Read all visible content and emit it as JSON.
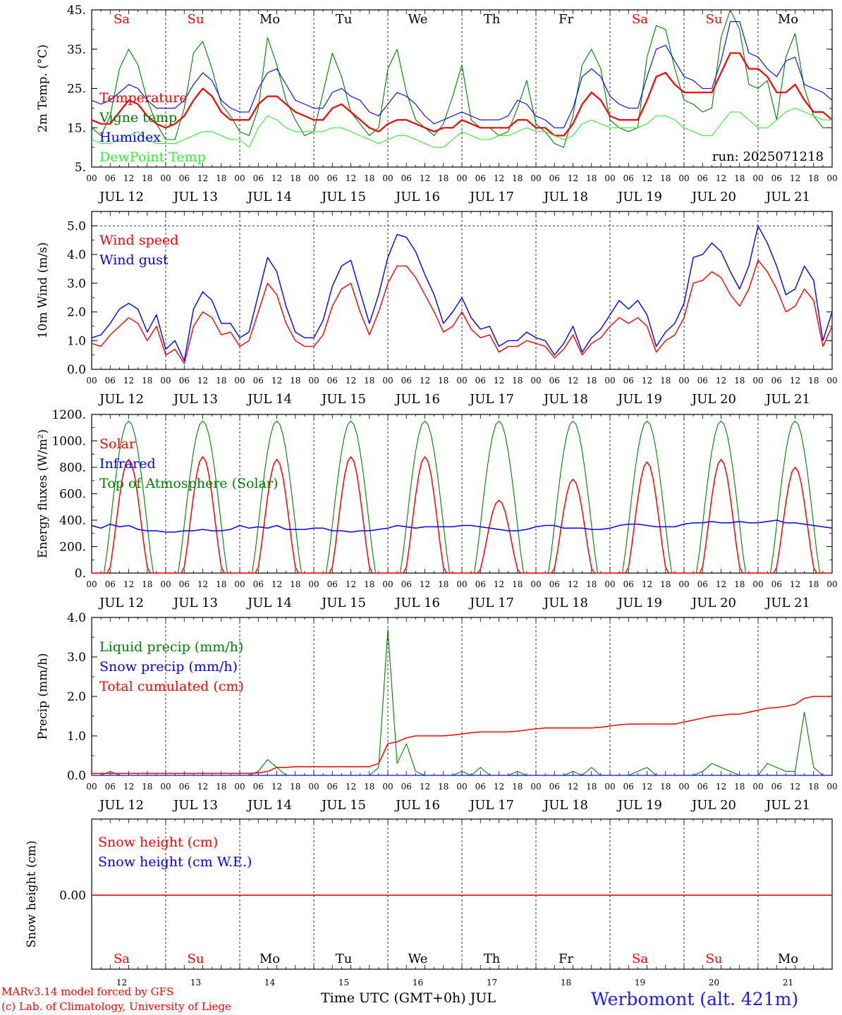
{
  "footer": {
    "credit_line1": "MARv3.14 model forced by GFS",
    "credit_line2": "(c) Lab. of Climatology, University of Liege",
    "x_title": "Time UTC (GMT+0h) JUL",
    "station": "Werbomont (alt. 421m)"
  },
  "colors": {
    "red": "#ff0000",
    "green": "#008000",
    "blue": "#0000ff",
    "light_green": "#33ee33"
  },
  "chart_data": [
    {
      "type": "line",
      "ylabel": "2m Temp. (°C)",
      "ylim": [
        5,
        45
      ],
      "yticks": [
        "5.",
        "15.",
        "25.",
        "35.",
        "45."
      ],
      "annotation": "run: 2025071218",
      "weekdays": [
        "Sa",
        "Su",
        "Mo",
        "Tu",
        "We",
        "Th",
        "Fr",
        "Sa",
        "Su",
        "Mo"
      ],
      "weekday_colors": [
        "red",
        "red",
        "black",
        "black",
        "black",
        "black",
        "black",
        "red",
        "red",
        "black"
      ],
      "hour_ticks": [
        "00",
        "06",
        "12",
        "18"
      ],
      "date_labels": [
        "JUL 12",
        "JUL 13",
        "JUL 14",
        "JUL 15",
        "JUL 16",
        "JUL 17",
        "JUL 18",
        "JUL 19",
        "JUL 20",
        "JUL 21"
      ],
      "x_unit": "hours since Jul 12 00 UTC (3-hourly)",
      "series": [
        {
          "name": "Vigne temp",
          "color": "green",
          "values": [
            15,
            13,
            18,
            30,
            35,
            31,
            22,
            16,
            12,
            12,
            20,
            34,
            37,
            30,
            21,
            18,
            14,
            13,
            20,
            38,
            31,
            22,
            17,
            13,
            14,
            24,
            34,
            28,
            19,
            16,
            13,
            15,
            30,
            35,
            24,
            17,
            15,
            13,
            16,
            23,
            31,
            17,
            15,
            15,
            13,
            14,
            20,
            27,
            16,
            14,
            11,
            10,
            18,
            31,
            35,
            30,
            17,
            15,
            14,
            15,
            33,
            41,
            40,
            30,
            22,
            21,
            19,
            20,
            38,
            45,
            40,
            26,
            25,
            27,
            17,
            33,
            39,
            25,
            18,
            15,
            15
          ]
        },
        {
          "name": "Humidex",
          "color": "blue",
          "values": [
            22,
            21,
            22,
            24,
            26,
            25,
            22,
            20,
            20,
            20,
            22,
            26,
            29,
            27,
            22,
            20,
            19,
            19,
            25,
            29,
            30,
            26,
            22,
            21,
            20,
            20,
            24,
            25,
            23,
            22,
            19,
            18,
            21,
            24,
            23,
            21,
            18,
            16,
            17,
            18,
            19,
            18,
            17,
            17,
            17,
            18,
            22,
            21,
            18,
            17,
            15,
            15,
            20,
            28,
            30,
            28,
            23,
            21,
            20,
            20,
            28,
            35,
            36,
            32,
            28,
            27,
            25,
            25,
            32,
            42,
            42,
            34,
            33,
            30,
            28,
            32,
            33,
            26,
            25,
            24,
            22
          ]
        },
        {
          "name": "Temperature",
          "color": "red",
          "values": [
            17,
            16,
            16,
            19,
            22,
            21,
            18,
            16,
            15,
            16,
            18,
            22,
            25,
            23,
            19,
            17,
            17,
            17,
            21,
            23,
            23,
            21,
            19,
            18,
            17,
            17,
            20,
            21,
            19,
            17,
            15,
            14,
            16,
            17,
            17,
            16,
            15,
            14,
            15,
            15,
            17,
            16,
            15,
            15,
            15,
            15,
            17,
            17,
            15,
            15,
            13,
            13,
            16,
            21,
            24,
            22,
            18,
            17,
            17,
            17,
            22,
            28,
            29,
            26,
            24,
            24,
            24,
            24,
            29,
            34,
            34,
            30,
            30,
            28,
            24,
            24,
            26,
            22,
            19,
            19,
            17
          ]
        },
        {
          "name": "DewPoint Temp",
          "color": "light_green",
          "values": [
            12,
            11,
            11,
            12,
            13,
            14,
            12,
            11,
            11,
            11,
            12,
            13,
            14,
            14,
            13,
            12,
            12,
            10,
            15,
            18,
            17,
            15,
            14,
            14,
            14,
            14,
            15,
            15,
            14,
            13,
            12,
            11,
            12,
            13,
            13,
            12,
            11,
            10,
            10,
            12,
            14,
            13,
            12,
            12,
            13,
            13,
            14,
            15,
            14,
            14,
            13,
            12,
            13,
            16,
            17,
            16,
            15,
            15,
            15,
            15,
            16,
            18,
            18,
            17,
            15,
            14,
            13,
            13,
            16,
            19,
            19,
            17,
            15,
            15,
            17,
            19,
            20,
            19,
            18,
            17,
            17
          ]
        }
      ]
    },
    {
      "type": "line",
      "ylabel": "10m Wind (m/s)",
      "ylim": [
        0,
        5.5
      ],
      "yticks": [
        "0.0",
        "1.0",
        "2.0",
        "3.0",
        "4.0",
        "5.0"
      ],
      "hour_ticks": [
        "00",
        "06",
        "12",
        "18"
      ],
      "date_labels": [
        "JUL 12",
        "JUL 13",
        "JUL 14",
        "JUL 15",
        "JUL 16",
        "JUL 17",
        "JUL 18",
        "JUL 19",
        "JUL 20",
        "JUL 21"
      ],
      "series": [
        {
          "name": "Wind speed",
          "color": "red",
          "values": [
            0.9,
            0.8,
            1.2,
            1.5,
            1.8,
            1.6,
            1.0,
            1.5,
            0.5,
            0.7,
            0.2,
            1.5,
            2.0,
            1.8,
            1.2,
            1.3,
            0.8,
            1.0,
            2.0,
            3.0,
            2.6,
            1.6,
            1.0,
            0.8,
            0.8,
            1.2,
            2.2,
            2.8,
            3.0,
            2.0,
            1.2,
            2.0,
            3.0,
            3.6,
            3.6,
            3.2,
            2.6,
            2.0,
            1.3,
            1.5,
            2.0,
            1.4,
            1.1,
            1.2,
            0.6,
            0.8,
            0.8,
            1.0,
            0.9,
            0.8,
            0.4,
            0.7,
            1.2,
            0.5,
            0.9,
            1.1,
            1.5,
            1.8,
            1.6,
            1.8,
            1.5,
            0.6,
            1.0,
            1.2,
            1.8,
            3.0,
            3.1,
            3.4,
            3.2,
            2.6,
            2.2,
            2.8,
            3.8,
            3.4,
            2.8,
            2.0,
            2.2,
            2.8,
            2.4,
            0.8,
            1.5
          ]
        },
        {
          "name": "Wind gust",
          "color": "blue",
          "values": [
            1.1,
            1.2,
            1.6,
            2.1,
            2.3,
            2.1,
            1.3,
            1.9,
            0.7,
            1.0,
            0.3,
            2.1,
            2.7,
            2.4,
            1.6,
            1.6,
            1.1,
            1.3,
            2.6,
            3.9,
            3.4,
            2.2,
            1.3,
            1.1,
            1.1,
            1.7,
            2.9,
            3.6,
            3.8,
            2.7,
            1.6,
            2.6,
            3.9,
            4.7,
            4.6,
            4.1,
            3.3,
            2.6,
            1.6,
            2.0,
            2.5,
            1.8,
            1.4,
            1.5,
            0.8,
            1.0,
            1.0,
            1.3,
            1.1,
            1.0,
            0.5,
            0.9,
            1.5,
            0.6,
            1.1,
            1.4,
            1.9,
            2.4,
            2.1,
            2.4,
            1.9,
            0.8,
            1.3,
            1.6,
            2.3,
            3.9,
            4.0,
            4.4,
            4.1,
            3.4,
            2.8,
            3.6,
            5.0,
            4.4,
            3.6,
            2.6,
            2.8,
            3.6,
            3.1,
            1.0,
            2.0
          ]
        }
      ]
    },
    {
      "type": "line",
      "ylabel": "Energy fluxes (W/m²)",
      "ylim": [
        0,
        1200
      ],
      "yticks": [
        "0.",
        "200.",
        "400.",
        "600.",
        "800.",
        "1000.",
        "1200."
      ],
      "hour_ticks": [
        "00",
        "06",
        "12",
        "18"
      ],
      "date_labels": [
        "JUL 12",
        "JUL 13",
        "JUL 14",
        "JUL 15",
        "JUL 16",
        "JUL 17",
        "JUL 18",
        "JUL 19",
        "JUL 20",
        "JUL 21"
      ],
      "toa_peak": 1150,
      "solar_peaks": [
        860,
        880,
        860,
        880,
        880,
        550,
        710,
        840,
        860,
        800
      ],
      "series": [
        {
          "name": "Solar",
          "color": "red"
        },
        {
          "name": "Infrared",
          "color": "blue",
          "values": [
            360,
            340,
            370,
            350,
            360,
            330,
            320,
            320,
            310,
            310,
            320,
            320,
            330,
            320,
            320,
            330,
            360,
            340,
            350,
            340,
            360,
            330,
            330,
            330,
            340,
            340,
            320,
            320,
            310,
            320,
            320,
            330,
            340,
            360,
            350,
            340,
            350,
            350,
            350,
            350,
            360,
            360,
            350,
            340,
            330,
            320,
            320,
            330,
            350,
            360,
            360,
            340,
            340,
            340,
            330,
            330,
            340,
            360,
            370,
            370,
            360,
            350,
            350,
            350,
            370,
            380,
            380,
            390,
            380,
            380,
            390,
            380,
            380,
            390,
            400,
            380,
            380,
            370,
            360,
            350,
            340
          ]
        },
        {
          "name": "Top of Atmosphere (Solar)",
          "color": "green"
        }
      ]
    },
    {
      "type": "line",
      "ylabel": "Precip (mm/h)",
      "ylim": [
        0,
        4.0
      ],
      "yticks": [
        "0.0",
        "1.0",
        "2.0",
        "3.0",
        "4.0"
      ],
      "hour_ticks": [
        "00",
        "06",
        "12",
        "18"
      ],
      "date_labels": [
        "JUL 12",
        "JUL 13",
        "JUL 14",
        "JUL 15",
        "JUL 16",
        "JUL 17",
        "JUL 18",
        "JUL 19",
        "JUL 20",
        "JUL 21"
      ],
      "series": [
        {
          "name": "Liquid precip (mm/h)",
          "color": "green",
          "values": [
            0,
            0,
            0.1,
            0,
            0,
            0,
            0,
            0,
            0,
            0,
            0,
            0,
            0,
            0,
            0,
            0,
            0,
            0,
            0.1,
            0.4,
            0.2,
            0,
            0,
            0,
            0,
            0,
            0,
            0,
            0,
            0,
            0,
            0.2,
            3.7,
            0.3,
            0.8,
            0.1,
            0,
            0,
            0,
            0,
            0.1,
            0,
            0.2,
            0,
            0,
            0,
            0.1,
            0,
            0,
            0,
            0,
            0,
            0.1,
            0,
            0.2,
            0,
            0,
            0,
            0,
            0.1,
            0.2,
            0,
            0,
            0,
            0,
            0,
            0.1,
            0.3,
            0.2,
            0.1,
            0,
            0,
            0,
            0.3,
            0.2,
            0.1,
            0.1,
            1.6,
            0.2,
            0,
            0
          ]
        },
        {
          "name": "Snow precip (mm/h)",
          "color": "blue",
          "values": [
            0,
            0,
            0,
            0,
            0,
            0,
            0,
            0,
            0,
            0,
            0,
            0,
            0,
            0,
            0,
            0,
            0,
            0,
            0,
            0,
            0,
            0,
            0,
            0,
            0,
            0,
            0,
            0,
            0,
            0,
            0,
            0,
            0,
            0,
            0,
            0,
            0,
            0,
            0,
            0,
            0,
            0,
            0,
            0,
            0,
            0,
            0,
            0,
            0,
            0,
            0,
            0,
            0,
            0,
            0,
            0,
            0,
            0,
            0,
            0,
            0,
            0,
            0,
            0,
            0,
            0,
            0,
            0,
            0,
            0,
            0,
            0,
            0,
            0,
            0,
            0,
            0,
            0,
            0,
            0,
            0
          ]
        },
        {
          "name": "Total cumulated (cm)",
          "color": "red",
          "values": [
            0.05,
            0.05,
            0.05,
            0.05,
            0.05,
            0.05,
            0.05,
            0.05,
            0.05,
            0.05,
            0.05,
            0.05,
            0.05,
            0.05,
            0.05,
            0.05,
            0.05,
            0.05,
            0.06,
            0.1,
            0.2,
            0.2,
            0.22,
            0.22,
            0.22,
            0.22,
            0.22,
            0.22,
            0.22,
            0.22,
            0.22,
            0.3,
            0.8,
            0.85,
            0.95,
            1.0,
            1.0,
            1.0,
            1.0,
            1.02,
            1.05,
            1.08,
            1.1,
            1.1,
            1.1,
            1.1,
            1.12,
            1.15,
            1.18,
            1.2,
            1.2,
            1.2,
            1.2,
            1.2,
            1.2,
            1.22,
            1.25,
            1.28,
            1.3,
            1.3,
            1.3,
            1.3,
            1.3,
            1.3,
            1.35,
            1.4,
            1.45,
            1.5,
            1.52,
            1.55,
            1.55,
            1.6,
            1.65,
            1.7,
            1.72,
            1.75,
            1.8,
            1.95,
            2.0,
            2.0,
            2.0
          ]
        }
      ]
    },
    {
      "type": "line",
      "ylabel": "Snow height (cm)",
      "yticks": [
        "0.00"
      ],
      "weekdays": [
        "Sa",
        "Su",
        "Mo",
        "Tu",
        "We",
        "Th",
        "Fr",
        "Sa",
        "Su",
        "Mo"
      ],
      "weekday_colors": [
        "red",
        "red",
        "black",
        "black",
        "black",
        "black",
        "black",
        "red",
        "red",
        "black"
      ],
      "day_numbers": [
        "12",
        "13",
        "14",
        "15",
        "16",
        "17",
        "18",
        "19",
        "20",
        "21"
      ],
      "series": [
        {
          "name": "Snow height (cm)",
          "color": "red",
          "values": [
            0,
            0
          ]
        },
        {
          "name": "Snow height (cm W.E.)",
          "color": "blue",
          "values": [
            0,
            0
          ]
        }
      ]
    }
  ]
}
